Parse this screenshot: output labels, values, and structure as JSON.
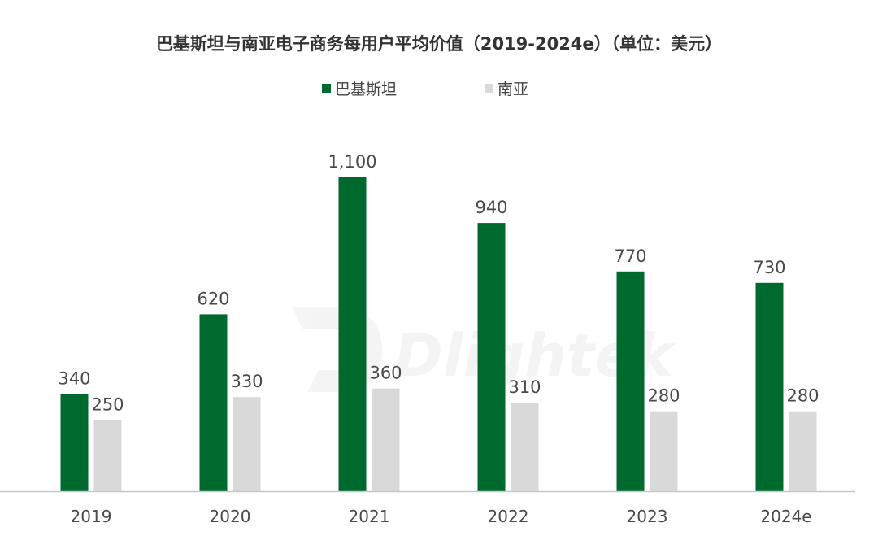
{
  "chart_data": {
    "type": "bar",
    "title": "巴基斯坦与南亚电子商务每用户平均价值（2019-2024e）（单位：美元）",
    "categories": [
      "2019",
      "2020",
      "2021",
      "2022",
      "2023",
      "2024e"
    ],
    "series": [
      {
        "name": "巴基斯坦",
        "color": "#006a2e",
        "values": [
          340,
          620,
          1100,
          940,
          770,
          730
        ],
        "labels": [
          "340",
          "620",
          "1,100",
          "940",
          "770",
          "730"
        ]
      },
      {
        "name": "南亚",
        "color": "#d9d9d9",
        "values": [
          250,
          330,
          360,
          310,
          280,
          280
        ],
        "labels": [
          "250",
          "330",
          "360",
          "310",
          "280",
          "280"
        ]
      }
    ],
    "ylim": [
      0,
      1100
    ],
    "grid": false,
    "legend_position": "top-center",
    "axis_color": "#c8c8c8"
  },
  "watermark": {
    "text": "Dlightek"
  }
}
